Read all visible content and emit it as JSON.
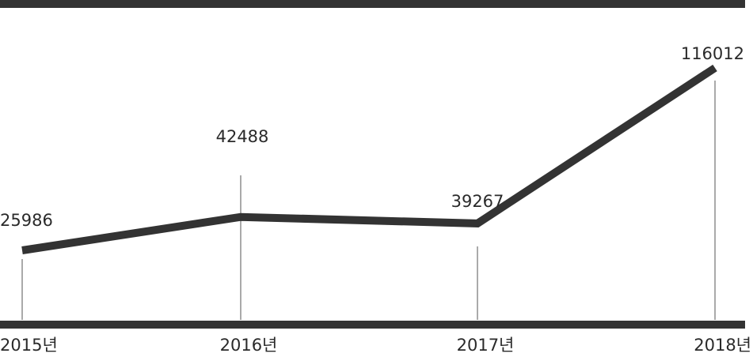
{
  "chart_data": {
    "type": "line",
    "categories": [
      "2015년",
      "2016년",
      "2017년",
      "2018년"
    ],
    "series": [
      {
        "values": [
          25986,
          42488,
          39267,
          116012
        ]
      }
    ],
    "value_labels": [
      "25986",
      "42488",
      "39267",
      "116012"
    ],
    "title": "",
    "xlabel": "",
    "ylabel": "",
    "grid": false,
    "legend": "none"
  },
  "colors": {
    "line": "#333333",
    "frame": "#333333",
    "drop_line": "#555555",
    "text": "#2a2a2a",
    "background": "#ffffff"
  }
}
